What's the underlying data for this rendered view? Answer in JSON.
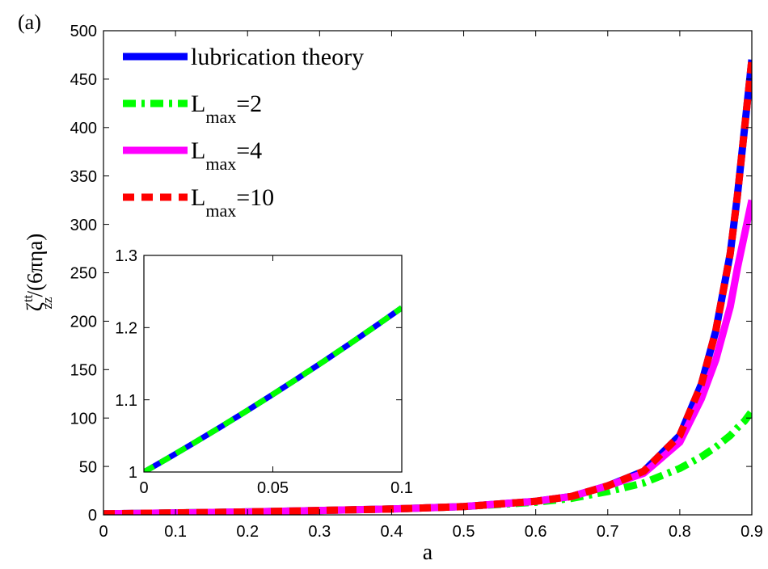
{
  "panel_label": "(a)",
  "chart_data": [
    {
      "type": "line",
      "title": "",
      "xlabel": "a",
      "ylabel": "ζ",
      "ylabel_sup": "tt",
      "ylabel_sub": "zz",
      "ylabel_suffix": "/(6πηa)",
      "xlim": [
        0,
        0.9
      ],
      "ylim": [
        0,
        500
      ],
      "xticks": [
        0,
        0.1,
        0.2,
        0.3,
        0.4,
        0.5,
        0.6,
        0.7,
        0.8,
        0.9
      ],
      "xtick_labels": [
        "0",
        "0.1",
        "0.2",
        "0.3",
        "0.4",
        "0.5",
        "0.6",
        "0.7",
        "0.8",
        "0.9"
      ],
      "yticks": [
        0,
        50,
        100,
        150,
        200,
        250,
        300,
        350,
        400,
        450,
        500
      ],
      "ytick_labels": [
        "0",
        "50",
        "100",
        "150",
        "200",
        "250",
        "300",
        "350",
        "400",
        "450",
        "500"
      ],
      "grid": false,
      "legend_position": "top-left",
      "x": [
        0,
        0.1,
        0.2,
        0.3,
        0.4,
        0.5,
        0.6,
        0.65,
        0.7,
        0.75,
        0.8,
        0.83,
        0.85,
        0.87,
        0.88,
        0.89,
        0.9
      ],
      "series": [
        {
          "name": "lubrication theory",
          "legend_main": "lubrication theory",
          "legend_sub": "",
          "legend_tail": "",
          "color": "#0000ff",
          "style": "solid",
          "values": [
            1,
            2,
            3,
            4.5,
            6,
            8.5,
            14,
            19,
            30,
            45,
            82,
            135,
            190,
            270,
            330,
            400,
            470
          ]
        },
        {
          "name": "Lmax=2",
          "legend_main": "L",
          "legend_sub": "max",
          "legend_tail": "=2",
          "color": "#00ff00",
          "style": "dashdot",
          "values": [
            1,
            2,
            3,
            4.5,
            6,
            8.5,
            13,
            17,
            24,
            33,
            48,
            60,
            70,
            82,
            90,
            97,
            107
          ]
        },
        {
          "name": "Lmax=4",
          "legend_main": "L",
          "legend_sub": "max",
          "legend_tail": "=4",
          "color": "#ff00ff",
          "style": "solid",
          "values": [
            1,
            2,
            3,
            4.5,
            6,
            8.5,
            14,
            19,
            30,
            43,
            75,
            120,
            160,
            215,
            255,
            290,
            325
          ]
        },
        {
          "name": "Lmax=10",
          "legend_main": "L",
          "legend_sub": "max",
          "legend_tail": "=10",
          "color": "#ff0000",
          "style": "dashed",
          "values": [
            1,
            2,
            3,
            4.5,
            6,
            8.5,
            14,
            19,
            30,
            45,
            82,
            135,
            190,
            270,
            330,
            400,
            470
          ]
        }
      ]
    },
    {
      "type": "line",
      "title": "",
      "xlabel": "",
      "ylabel": "",
      "xlim": [
        0,
        0.1
      ],
      "ylim": [
        1,
        1.3
      ],
      "xticks": [
        0,
        0.05,
        0.1
      ],
      "xtick_labels": [
        "0",
        "0.05",
        "0.1"
      ],
      "yticks": [
        1,
        1.1,
        1.2,
        1.3
      ],
      "ytick_labels": [
        "1",
        "1.1",
        "1.2",
        "1.3"
      ],
      "grid": false,
      "x": [
        0,
        0.01,
        0.02,
        0.03,
        0.04,
        0.05,
        0.06,
        0.07,
        0.08,
        0.09,
        0.1
      ],
      "series": [
        {
          "color": "#0000ff",
          "style": "solid",
          "values": [
            1.0,
            1.0205,
            1.0415,
            1.063,
            1.085,
            1.1075,
            1.1305,
            1.154,
            1.178,
            1.2025,
            1.2275
          ]
        },
        {
          "color": "#00ff00",
          "style": "dashed",
          "values": [
            1.0,
            1.0205,
            1.0415,
            1.063,
            1.085,
            1.1075,
            1.1305,
            1.154,
            1.178,
            1.2025,
            1.2275
          ]
        }
      ]
    }
  ]
}
